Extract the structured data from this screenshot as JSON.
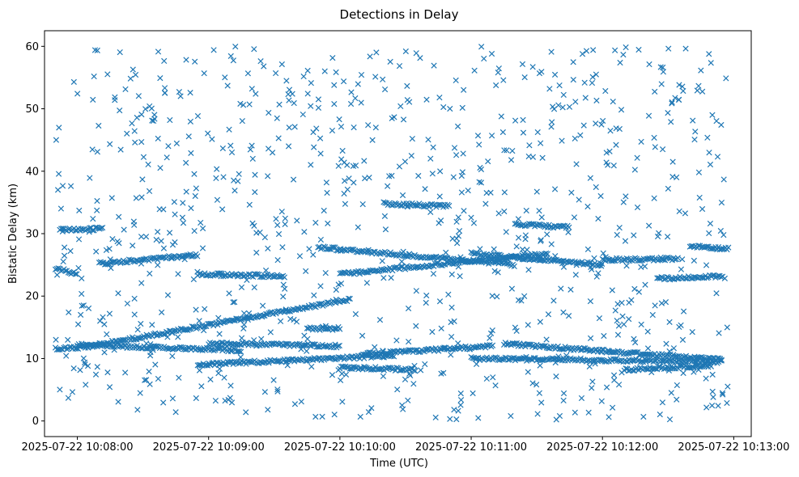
{
  "chart_data": {
    "type": "scatter",
    "title": "Detections in Delay",
    "xlabel": "Time (UTC)",
    "ylabel": "Bistatic Delay (km)",
    "x_axis": {
      "range": [
        "2025-07-22 10:07:45",
        "2025-07-22 10:13:08"
      ],
      "ticks": [
        "2025-07-22 10:08:00",
        "2025-07-22 10:09:00",
        "2025-07-22 10:10:00",
        "2025-07-22 10:11:00",
        "2025-07-22 10:12:00",
        "2025-07-22 10:13:00"
      ]
    },
    "y_axis": {
      "range": [
        -2.5,
        62.5
      ],
      "ticks": [
        0,
        10,
        20,
        30,
        40,
        50,
        60
      ]
    },
    "grid": false,
    "marker": "x",
    "color": "#1f77b4",
    "data_window": [
      "2025-07-22 10:07:50",
      "2025-07-22 10:12:58"
    ],
    "noise_points": 900,
    "noise_y_range": [
      0,
      60
    ],
    "tracks": [
      {
        "start": "2025-07-22 10:07:50",
        "end": "2025-07-22 10:08:05",
        "y_start": 11.5,
        "y_end": 11.9
      },
      {
        "start": "2025-07-22 10:08:05",
        "end": "2025-07-22 10:10:05",
        "y_start": 11.9,
        "y_end": 19.5
      },
      {
        "start": "2025-07-22 10:08:00",
        "end": "2025-07-22 10:09:15",
        "y_start": 12.2,
        "y_end": 11.3
      },
      {
        "start": "2025-07-22 10:08:55",
        "end": "2025-07-22 10:10:25",
        "y_start": 9.0,
        "y_end": 10.5
      },
      {
        "start": "2025-07-22 10:10:10",
        "end": "2025-07-22 10:11:10",
        "y_start": 10.7,
        "y_end": 12.0
      },
      {
        "start": "2025-07-22 10:09:00",
        "end": "2025-07-22 10:10:00",
        "y_start": 12.5,
        "y_end": 12.0
      },
      {
        "start": "2025-07-22 10:10:00",
        "end": "2025-07-22 10:10:35",
        "y_start": 8.6,
        "y_end": 8.2
      },
      {
        "start": "2025-07-22 10:11:00",
        "end": "2025-07-22 10:12:55",
        "y_start": 10.0,
        "y_end": 9.5
      },
      {
        "start": "2025-07-22 10:11:15",
        "end": "2025-07-22 10:12:55",
        "y_start": 12.4,
        "y_end": 9.8
      },
      {
        "start": "2025-07-22 10:12:10",
        "end": "2025-07-22 10:12:50",
        "y_start": 8.2,
        "y_end": 8.9
      },
      {
        "start": "2025-07-22 10:08:10",
        "end": "2025-07-22 10:08:55",
        "y_start": 25.2,
        "y_end": 26.6
      },
      {
        "start": "2025-07-22 10:09:50",
        "end": "2025-07-22 10:11:20",
        "y_start": 27.8,
        "y_end": 25.0
      },
      {
        "start": "2025-07-22 10:10:00",
        "end": "2025-07-22 10:11:35",
        "y_start": 23.5,
        "y_end": 26.8
      },
      {
        "start": "2025-07-22 10:11:00",
        "end": "2025-07-22 10:12:00",
        "y_start": 26.8,
        "y_end": 25.0
      },
      {
        "start": "2025-07-22 10:12:00",
        "end": "2025-07-22 10:12:35",
        "y_start": 25.8,
        "y_end": 26.0
      },
      {
        "start": "2025-07-22 10:12:25",
        "end": "2025-07-22 10:12:55",
        "y_start": 22.8,
        "y_end": 23.2
      },
      {
        "start": "2025-07-22 10:07:50",
        "end": "2025-07-22 10:08:00",
        "y_start": 24.5,
        "y_end": 23.5
      },
      {
        "start": "2025-07-22 10:07:52",
        "end": "2025-07-22 10:08:12",
        "y_start": 30.6,
        "y_end": 30.8
      },
      {
        "start": "2025-07-22 10:10:20",
        "end": "2025-07-22 10:10:50",
        "y_start": 34.8,
        "y_end": 34.4
      },
      {
        "start": "2025-07-22 10:11:20",
        "end": "2025-07-22 10:11:45",
        "y_start": 31.5,
        "y_end": 31.0
      },
      {
        "start": "2025-07-22 10:12:40",
        "end": "2025-07-22 10:12:58",
        "y_start": 28.0,
        "y_end": 27.6
      },
      {
        "start": "2025-07-22 10:08:55",
        "end": "2025-07-22 10:09:35",
        "y_start": 23.5,
        "y_end": 23.2
      },
      {
        "start": "2025-07-22 10:09:45",
        "end": "2025-07-22 10:10:00",
        "y_start": 14.8,
        "y_end": 14.8
      }
    ]
  }
}
